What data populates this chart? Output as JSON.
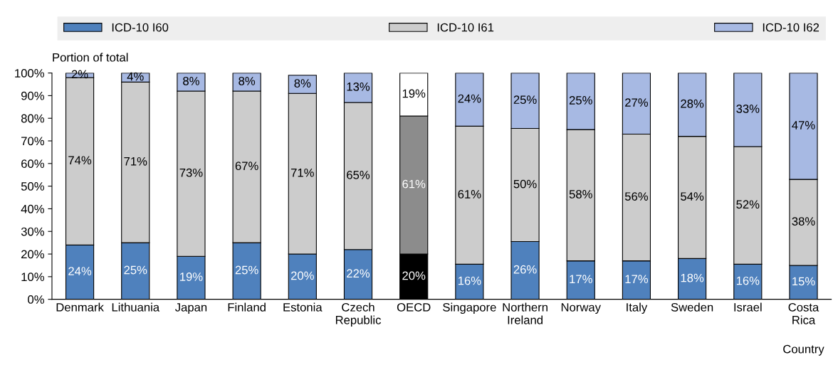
{
  "chart_data": {
    "type": "bar",
    "stacked": true,
    "ylabel": "Portion of total",
    "xlabel": "Country",
    "categories": [
      "Denmark",
      "Lithuania",
      "Japan",
      "Finland",
      "Estonia",
      "Czech\nRepublic",
      "OECD",
      "Singapore",
      "Northern\nIreland",
      "Norway",
      "Italy",
      "Sweden",
      "Israel",
      "Costa\nRica"
    ],
    "series": [
      {
        "name": "ICD-10 I60",
        "color": "#4f81bd",
        "colors": [
          "#4f81bd",
          "#4f81bd",
          "#4f81bd",
          "#4f81bd",
          "#4f81bd",
          "#4f81bd",
          "#000000",
          "#4f81bd",
          "#4f81bd",
          "#4f81bd",
          "#4f81bd",
          "#4f81bd",
          "#4f81bd",
          "#4f81bd"
        ],
        "values": [
          24,
          25,
          19,
          25,
          20,
          22,
          20,
          15.5,
          25.5,
          17,
          17,
          18,
          15.5,
          15
        ],
        "value_labels": [
          "24%",
          "25%",
          "19%",
          "25%",
          "20%",
          "22%",
          "20%",
          "16%",
          "26%",
          "17%",
          "17%",
          "18%",
          "16%",
          "15%"
        ]
      },
      {
        "name": "ICD-10 I61",
        "color": "#cccccc",
        "colors": [
          "#cccccc",
          "#cccccc",
          "#cccccc",
          "#cccccc",
          "#cccccc",
          "#cccccc",
          "#8c8c8c",
          "#cccccc",
          "#cccccc",
          "#cccccc",
          "#cccccc",
          "#cccccc",
          "#cccccc",
          "#cccccc"
        ],
        "values": [
          74,
          71,
          73,
          67,
          71,
          65,
          61,
          61,
          50,
          58,
          56,
          54,
          52,
          38
        ],
        "value_labels": [
          "74%",
          "71%",
          "73%",
          "67%",
          "71%",
          "65%",
          "61%",
          "61%",
          "50%",
          "58%",
          "56%",
          "54%",
          "52%",
          "38%"
        ]
      },
      {
        "name": "ICD-10 I62",
        "color": "#a7b9e3",
        "colors": [
          "#a7b9e3",
          "#a7b9e3",
          "#a7b9e3",
          "#a7b9e3",
          "#a7b9e3",
          "#a7b9e3",
          "#ffffff",
          "#a7b9e3",
          "#a7b9e3",
          "#a7b9e3",
          "#a7b9e3",
          "#a7b9e3",
          "#a7b9e3",
          "#a7b9e3"
        ],
        "values": [
          2,
          4,
          8,
          8,
          8,
          13,
          19,
          23.5,
          24.5,
          25,
          27,
          28,
          32.5,
          47
        ],
        "value_labels": [
          "2%",
          "4%",
          "8%",
          "8%",
          "8%",
          "13%",
          "19%",
          "24%",
          "25%",
          "25%",
          "27%",
          "28%",
          "33%",
          "47%"
        ]
      }
    ],
    "ylim": [
      0,
      100
    ],
    "yticks": [
      {
        "value": 0,
        "label": "0%"
      },
      {
        "value": 10,
        "label": "10%"
      },
      {
        "value": 20,
        "label": "20%"
      },
      {
        "value": 30,
        "label": "30%"
      },
      {
        "value": 40,
        "label": "40%"
      },
      {
        "value": 50,
        "label": "50%"
      },
      {
        "value": 60,
        "label": "60%"
      },
      {
        "value": 70,
        "label": "70%"
      },
      {
        "value": 80,
        "label": "80%"
      },
      {
        "value": 90,
        "label": "90%"
      },
      {
        "value": 100,
        "label": "100%"
      }
    ],
    "grid": false,
    "legend": "top"
  }
}
